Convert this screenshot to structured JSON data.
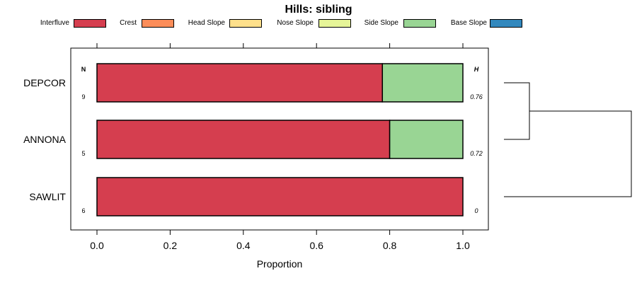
{
  "chart_data": {
    "type": "bar",
    "orientation": "horizontal-stacked",
    "title": "Hills: sibling",
    "xlabel": "Proportion",
    "ylabel": "",
    "xlim": [
      0,
      1
    ],
    "x_ticks": [
      "0.0",
      "0.2",
      "0.4",
      "0.6",
      "0.8",
      "1.0"
    ],
    "x_tick_values": [
      0,
      0.2,
      0.4,
      0.6,
      0.8,
      1.0
    ],
    "legend": [
      {
        "name": "Interfluve",
        "color": "#D53E4F"
      },
      {
        "name": "Crest",
        "color": "#FC8D59"
      },
      {
        "name": "Head Slope",
        "color": "#FEE08B"
      },
      {
        "name": "Nose Slope",
        "color": "#E6F598"
      },
      {
        "name": "Side Slope",
        "color": "#99D594"
      },
      {
        "name": "Base Slope",
        "color": "#3288BD"
      }
    ],
    "n_header": "N",
    "h_header": "H",
    "categories": [
      "DEPCOR",
      "ANNONA",
      "SAWLIT"
    ],
    "n_values": [
      "9",
      "5",
      "6"
    ],
    "h_values": [
      "0.76",
      "0.72",
      "0"
    ],
    "series": [
      {
        "name": "Interfluve",
        "values": [
          0.78,
          0.8,
          1.0
        ]
      },
      {
        "name": "Crest",
        "values": [
          0,
          0,
          0
        ]
      },
      {
        "name": "Head Slope",
        "values": [
          0,
          0,
          0
        ]
      },
      {
        "name": "Nose Slope",
        "values": [
          0,
          0,
          0
        ]
      },
      {
        "name": "Side Slope",
        "values": [
          0.22,
          0.2,
          0
        ]
      },
      {
        "name": "Base Slope",
        "values": [
          0,
          0,
          0
        ]
      }
    ],
    "dendrogram": {
      "merges": [
        {
          "members": [
            "DEPCOR",
            "ANNONA"
          ],
          "height": 0.2
        },
        {
          "members": [
            "DEPCOR+ANNONA",
            "SAWLIT"
          ],
          "height": 1.0
        }
      ]
    }
  }
}
